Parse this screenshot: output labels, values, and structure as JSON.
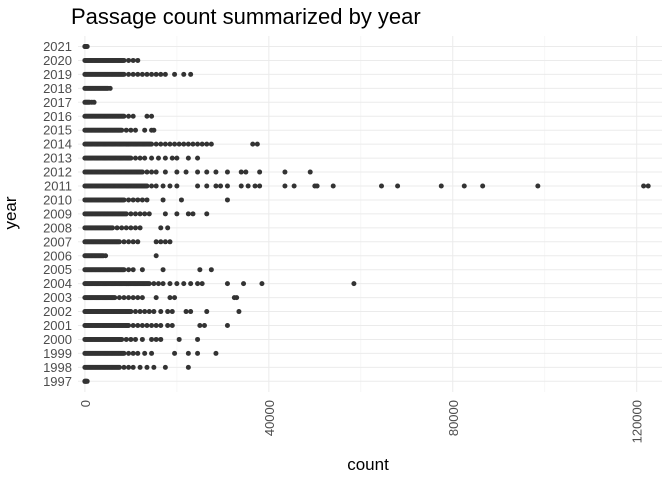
{
  "chart_data": {
    "type": "scatter",
    "title": "Passage count summarized by year",
    "xlabel": "count",
    "ylabel": "year",
    "xlim": [
      -1500,
      125500
    ],
    "x_ticks": [
      0,
      40000,
      80000,
      120000
    ],
    "x_tick_labels": [
      "0",
      "40000",
      "80000",
      "120000"
    ],
    "categories": [
      "1997",
      "1998",
      "1999",
      "2000",
      "2001",
      "2002",
      "2003",
      "2004",
      "2005",
      "2006",
      "2007",
      "2008",
      "2009",
      "2010",
      "2011",
      "2012",
      "2013",
      "2014",
      "2015",
      "2016",
      "2017",
      "2018",
      "2019",
      "2020",
      "2021"
    ],
    "grid": true,
    "legend": "none",
    "point_color": "#333333",
    "series": [
      {
        "y": "1997",
        "dense_range": [
          0,
          500
        ],
        "x": [
          0,
          300
        ]
      },
      {
        "y": "1998",
        "dense_range": [
          0,
          7500
        ],
        "x": [
          8500,
          9500,
          10500,
          12000,
          13500,
          15000,
          17500,
          22500
        ]
      },
      {
        "y": "1999",
        "dense_range": [
          0,
          8500
        ],
        "x": [
          9500,
          10500,
          11500,
          13000,
          14500,
          19500,
          22500,
          24500,
          28500
        ]
      },
      {
        "y": "2000",
        "dense_range": [
          0,
          8000
        ],
        "x": [
          9000,
          10000,
          11000,
          12500,
          14500,
          15500,
          16500,
          20500,
          24500
        ]
      },
      {
        "y": "2001",
        "dense_range": [
          0,
          9500
        ],
        "x": [
          10500,
          11500,
          12500,
          13500,
          14500,
          15500,
          16500,
          18000,
          19000,
          25000,
          26000,
          31000
        ]
      },
      {
        "y": "2002",
        "dense_range": [
          0,
          10000
        ],
        "x": [
          11000,
          12000,
          13000,
          14000,
          15000,
          16500,
          18000,
          19000,
          22000,
          23000,
          26500,
          33500
        ]
      },
      {
        "y": "2003",
        "dense_range": [
          0,
          6500
        ],
        "x": [
          7500,
          8500,
          9500,
          10500,
          11500,
          12500,
          15500,
          18500,
          19500,
          32500,
          33000
        ]
      },
      {
        "y": "2004",
        "dense_range": [
          0,
          14000
        ],
        "x": [
          15000,
          16000,
          17000,
          18500,
          20000,
          21500,
          23000,
          24500,
          25500,
          31000,
          34500,
          38500,
          58500
        ]
      },
      {
        "y": "2005",
        "dense_range": [
          0,
          8500
        ],
        "x": [
          9500,
          10500,
          12500,
          17000,
          25000,
          27500
        ]
      },
      {
        "y": "2006",
        "dense_range": [
          0,
          4000
        ],
        "x": [
          4500,
          15500
        ]
      },
      {
        "y": "2007",
        "dense_range": [
          0,
          7500
        ],
        "x": [
          8500,
          9500,
          10500,
          11500,
          15500,
          16500,
          17500,
          18500
        ]
      },
      {
        "y": "2008",
        "dense_range": [
          0,
          6000
        ],
        "x": [
          7000,
          8000,
          9000,
          10000,
          11000,
          12000,
          16500,
          18000
        ]
      },
      {
        "y": "2009",
        "dense_range": [
          0,
          9000
        ],
        "x": [
          10000,
          11000,
          12000,
          13000,
          14000,
          17500,
          20000,
          22500,
          23500,
          26500
        ]
      },
      {
        "y": "2010",
        "dense_range": [
          0,
          8500
        ],
        "x": [
          9500,
          10500,
          11500,
          12500,
          13500,
          17000,
          21000,
          31000
        ]
      },
      {
        "y": "2011",
        "dense_range": [
          0,
          13500
        ],
        "x": [
          14500,
          15500,
          17000,
          18500,
          20000,
          24500,
          26500,
          28500,
          29500,
          31000,
          34000,
          35500,
          37000,
          38000,
          43500,
          45500,
          50000,
          50500,
          54000,
          64500,
          68000,
          77500,
          82500,
          86500,
          98500,
          121500,
          122500
        ]
      },
      {
        "y": "2012",
        "dense_range": [
          0,
          12500
        ],
        "x": [
          13500,
          14500,
          15500,
          17500,
          20000,
          22000,
          24500,
          26500,
          28500,
          31000,
          34000,
          35000,
          38000,
          43500,
          49000
        ]
      },
      {
        "y": "2013",
        "dense_range": [
          0,
          10000
        ],
        "x": [
          11000,
          12000,
          13000,
          14500,
          16000,
          17500,
          19000,
          20000,
          22500,
          24500
        ]
      },
      {
        "y": "2014",
        "dense_range": [
          0,
          14500
        ],
        "x": [
          15500,
          16500,
          17500,
          18500,
          19500,
          20500,
          21500,
          22500,
          23500,
          24500,
          25500,
          26500,
          27500,
          36500,
          37500
        ]
      },
      {
        "y": "2015",
        "dense_range": [
          0,
          8000
        ],
        "x": [
          9000,
          10000,
          11000,
          13000,
          14500,
          15000
        ]
      },
      {
        "y": "2016",
        "dense_range": [
          0,
          8500
        ],
        "x": [
          9500,
          10500,
          13500,
          14500
        ]
      },
      {
        "y": "2017",
        "dense_range": [
          0,
          1200
        ],
        "x": [
          1500,
          2000
        ]
      },
      {
        "y": "2018",
        "dense_range": [
          0,
          5000
        ],
        "x": [
          5500
        ]
      },
      {
        "y": "2019",
        "dense_range": [
          0,
          8500
        ],
        "x": [
          9500,
          10500,
          11500,
          12500,
          13500,
          14500,
          15500,
          16500,
          17500,
          19500,
          21500,
          23000
        ]
      },
      {
        "y": "2020",
        "dense_range": [
          0,
          8500
        ],
        "x": [
          9500,
          10500,
          11500
        ]
      },
      {
        "y": "2021",
        "dense_range": [
          0,
          500
        ],
        "x": [
          0,
          300
        ]
      }
    ]
  }
}
